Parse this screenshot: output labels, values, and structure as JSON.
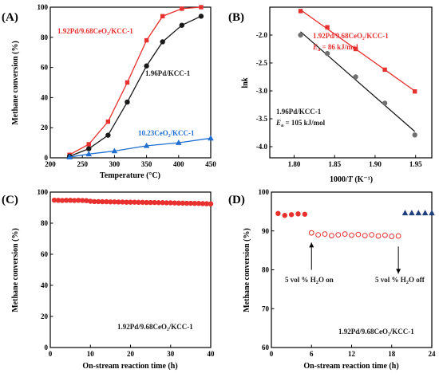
{
  "colors": {
    "red": "#e8302f",
    "black": "#1a1a1a",
    "blue": "#1f6fd1",
    "gray": "#707070",
    "navy": "#1f3f7a"
  },
  "chart_data": [
    {
      "id": "A",
      "panel_label": "(A)",
      "type": "line",
      "xlabel": "Temperature (°C)",
      "ylabel": "Methane conversion (%)",
      "xlim": [
        200,
        450
      ],
      "ylim": [
        0,
        100
      ],
      "xticks": [
        200,
        250,
        300,
        350,
        400,
        450
      ],
      "yticks": [
        0,
        20,
        40,
        60,
        80,
        100
      ],
      "series": [
        {
          "name": "1.92Pd/9.68CeO₂/KCC-1",
          "color": "red",
          "marker": "square",
          "x": [
            230,
            260,
            290,
            320,
            350,
            375,
            405,
            435
          ],
          "y": [
            2,
            9,
            24,
            50,
            78,
            94,
            99,
            100
          ]
        },
        {
          "name": "1.96Pd/KCC-1",
          "color": "black",
          "marker": "circle",
          "x": [
            230,
            260,
            290,
            320,
            350,
            375,
            405,
            435
          ],
          "y": [
            1,
            6,
            15,
            37,
            61,
            77,
            88,
            94
          ]
        },
        {
          "name": "10.23CeO₂/KCC-1",
          "color": "blue",
          "marker": "triangle",
          "x": [
            230,
            260,
            300,
            350,
            400,
            450
          ],
          "y": [
            0.5,
            2.5,
            4.5,
            8,
            10,
            13
          ]
        }
      ]
    },
    {
      "id": "B",
      "panel_label": "(B)",
      "type": "scatter",
      "xlabel_pre": "1000/",
      "xlabel_var": "T",
      "xlabel_post": " (K⁻¹)",
      "ylabel_pre": "ln",
      "ylabel_var": "k",
      "xlim": [
        1.77,
        1.97
      ],
      "ylim": [
        -4.2,
        -1.5
      ],
      "xticks": [
        1.8,
        1.85,
        1.9,
        1.95
      ],
      "yticks": [
        -4.0,
        -3.5,
        -3.0,
        -2.5,
        -2.0
      ],
      "series": [
        {
          "name": "1.92Pd/9.68CeO₂/KCC-1",
          "color": "red",
          "marker": "square",
          "x": [
            1.808,
            1.841,
            1.876,
            1.912,
            1.949
          ],
          "y": [
            -1.57,
            -1.86,
            -2.25,
            -2.62,
            -3.01
          ],
          "ea_pre": "E",
          "ea_sub": "a",
          "ea_value": " = 86 kJ/mol"
        },
        {
          "name": "1.96Pd/KCC-1",
          "color": "black",
          "marker": "circle",
          "x": [
            1.808,
            1.841,
            1.876,
            1.912,
            1.949
          ],
          "y": [
            -2.0,
            -2.33,
            -2.75,
            -3.22,
            -3.79
          ],
          "ea_pre": "E",
          "ea_sub": "a",
          "ea_value": " = 105 kJ/mol"
        }
      ]
    },
    {
      "id": "C",
      "panel_label": "(C)",
      "type": "scatter",
      "xlabel": "On-stream reaction time (h)",
      "ylabel": "Methane conversion (%)",
      "xlim": [
        0,
        40
      ],
      "ylim": [
        0,
        100
      ],
      "xticks": [
        0,
        10,
        20,
        30,
        40
      ],
      "yticks": [
        0,
        20,
        40,
        60,
        80,
        100
      ],
      "series": [
        {
          "name": "",
          "color": "red",
          "marker": "circle",
          "filled": true,
          "x": [
            1,
            2,
            3,
            4,
            5,
            6,
            7,
            8,
            9,
            10,
            11,
            12,
            13,
            14,
            15,
            16,
            17,
            18,
            19,
            20,
            21,
            22,
            23,
            24,
            25,
            26,
            27,
            28,
            29,
            30,
            31,
            32,
            33,
            34,
            35,
            36,
            37,
            38,
            39,
            40
          ],
          "y": [
            94.8,
            94.7,
            94.6,
            94.7,
            94.7,
            94.6,
            94.7,
            94.6,
            94.5,
            94.1,
            93.9,
            93.9,
            93.8,
            93.8,
            93.7,
            93.7,
            93.6,
            93.6,
            93.5,
            93.5,
            93.5,
            93.4,
            93.4,
            93.3,
            93.3,
            93.3,
            93.2,
            93.2,
            93.1,
            93.1,
            93.0,
            92.9,
            92.9,
            92.8,
            92.8,
            92.7,
            92.7,
            92.6,
            92.5,
            92.4
          ]
        }
      ],
      "annotation": "1.92Pd/9.68CeO₂/KCC-1"
    },
    {
      "id": "D",
      "panel_label": "(D)",
      "type": "scatter",
      "xlabel": "On-stream reaction time (h)",
      "ylabel": "Methane conversion (%)",
      "xlim": [
        0,
        24
      ],
      "ylim": [
        60,
        100
      ],
      "xticks": [
        0,
        6,
        12,
        18,
        24
      ],
      "yticks": [
        60,
        70,
        80,
        90,
        100
      ],
      "series": [
        {
          "name": "",
          "color": "red",
          "marker": "circle",
          "filled": true,
          "x": [
            1,
            2,
            3,
            4,
            5
          ],
          "y": [
            94.5,
            94.0,
            94.2,
            94.4,
            94.3
          ]
        },
        {
          "name": "",
          "color": "red",
          "marker": "circle",
          "filled": false,
          "x": [
            6,
            7,
            8,
            9,
            10,
            11,
            12,
            13,
            14,
            15,
            16,
            17,
            18,
            19
          ],
          "y": [
            89.5,
            89.0,
            89.2,
            88.8,
            89.0,
            89.2,
            88.9,
            89.1,
            88.8,
            89.0,
            88.7,
            88.9,
            88.6,
            88.7
          ]
        },
        {
          "name": "",
          "color": "navy",
          "marker": "triangle",
          "filled": true,
          "x": [
            20,
            21,
            22,
            23,
            24
          ],
          "y": [
            94.6,
            94.6,
            94.6,
            94.6,
            94.6
          ]
        }
      ],
      "arrows": [
        {
          "x": 6,
          "y_from": 80,
          "y_to": 87,
          "label_pre": "5 vol % H",
          "label_sub": "2",
          "label_post": "O on"
        },
        {
          "x": 19,
          "y_from": 86,
          "y_to": 79,
          "label_pre": "5 vol % H",
          "label_sub": "2",
          "label_post": "O off"
        }
      ],
      "annotation": "1.92Pd/9.68CeO₂/KCC-1"
    }
  ]
}
